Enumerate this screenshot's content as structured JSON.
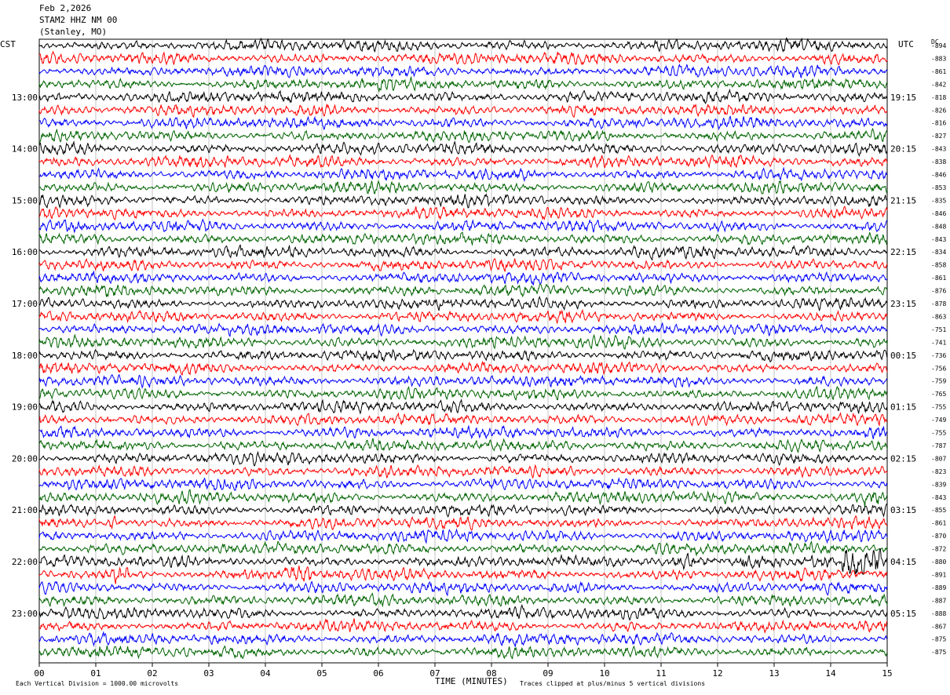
{
  "header": {
    "date": "Feb 2,2026",
    "station": "STAM2 HHZ NM 00",
    "location": "(Stanley, MO)"
  },
  "left_tz": "CST",
  "right_tz": "UTC",
  "dc_label": "DC",
  "footer": {
    "xlabel": "TIME (MINUTES)",
    "scale_note": "Each Vertical Division = 1000.00 microvolts",
    "clip_note": "Traces clipped at plus/minus 5 vertical divisions"
  },
  "colors": {
    "trace_cycle": [
      "#000000",
      "#ff0000",
      "#0000ff",
      "#006400"
    ],
    "grid": "#9a9a9a"
  },
  "chart_data": {
    "type": "helicorder",
    "xlabel": "TIME (MINUTES)",
    "x_ticks": [
      "00",
      "01",
      "02",
      "03",
      "04",
      "05",
      "06",
      "07",
      "08",
      "09",
      "10",
      "11",
      "12",
      "13",
      "14",
      "15"
    ],
    "xlim": [
      0,
      15
    ],
    "row_minutes": 15,
    "left_hour_labels": [
      "13:00",
      "14:00",
      "15:00",
      "16:00",
      "17:00",
      "18:00",
      "19:00",
      "20:00",
      "21:00",
      "22:00",
      "23:00"
    ],
    "right_hour_labels": [
      "19:15",
      "20:15",
      "21:15",
      "22:15",
      "23:15",
      "00:15",
      "01:15",
      "02:15",
      "03:15",
      "04:15",
      "05:15"
    ],
    "dc_offsets": [
      "-894",
      "-883",
      "-861",
      "-842",
      "-818",
      "-826",
      "-816",
      "-827",
      "-843",
      "-838",
      "-846",
      "-853",
      "-835",
      "-846",
      "-848",
      "-843",
      "-834",
      "-858",
      "-861",
      "-876",
      "-878",
      "-863",
      "-751",
      "-741",
      "-736",
      "-756",
      "-759",
      "-765",
      "-755",
      "-749",
      "-755",
      "-787",
      "-807",
      "-823",
      "-839",
      "-843",
      "-855",
      "-861",
      "-870",
      "-872",
      "-880",
      "-891",
      "-889",
      "-887",
      "-888",
      "-867",
      "-875",
      "-875"
    ],
    "events": [
      {
        "row": 37,
        "start_min": 1.2,
        "end_min": 1.35,
        "note": "spike"
      },
      {
        "row": 35,
        "start_min": 14.6,
        "end_min": 14.95,
        "note": "burst"
      },
      {
        "row": 41,
        "start_min": 4.3,
        "end_min": 4.8,
        "note": "burst"
      },
      {
        "row": 41,
        "start_min": 1.3,
        "end_min": 1.6,
        "note": "burst"
      },
      {
        "row": 40,
        "start_min": 11.2,
        "end_min": 11.6,
        "note": "burst"
      },
      {
        "row": 40,
        "start_min": 12.4,
        "end_min": 14.0,
        "note": "burst"
      },
      {
        "row": 40,
        "start_min": 14.2,
        "end_min": 14.9,
        "note": "large burst"
      }
    ]
  }
}
